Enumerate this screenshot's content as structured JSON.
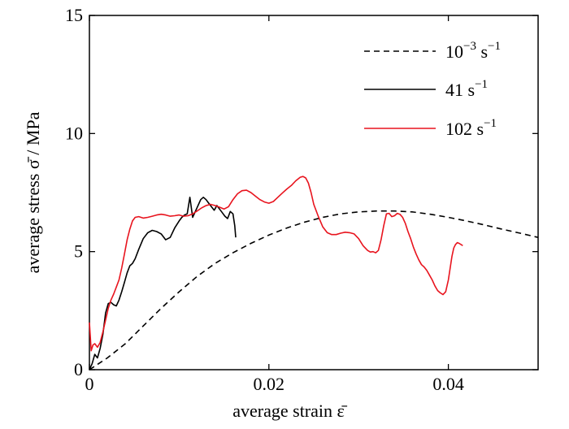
{
  "chart_data": {
    "type": "line",
    "title": "",
    "xlabel": "average strain ε̄",
    "ylabel": "average stress σ̄ / MPa",
    "xlim": [
      0,
      0.05
    ],
    "ylim": [
      0,
      15
    ],
    "x_ticks": [
      0,
      0.02,
      0.04
    ],
    "x_tick_labels": [
      "0",
      "0.02",
      "0.04"
    ],
    "y_ticks": [
      0,
      5,
      10,
      15
    ],
    "y_tick_labels": [
      "0",
      "5",
      "10",
      "15"
    ],
    "grid": false,
    "legend_position": "top-right",
    "series": [
      {
        "name": "10⁻³ s⁻¹",
        "legend_base": "10",
        "legend_exp": "−3",
        "legend_unit": "s",
        "legend_unit_exp": "−1",
        "style": "dashed",
        "color": "#000000",
        "x": [
          0.0,
          0.002,
          0.004,
          0.006,
          0.008,
          0.01,
          0.012,
          0.014,
          0.016,
          0.018,
          0.02,
          0.022,
          0.024,
          0.026,
          0.028,
          0.03,
          0.032,
          0.034,
          0.036,
          0.038,
          0.04,
          0.042,
          0.044,
          0.046,
          0.048,
          0.05
        ],
        "y": [
          0.0,
          0.5,
          1.1,
          1.85,
          2.6,
          3.3,
          3.95,
          4.5,
          4.95,
          5.35,
          5.7,
          6.0,
          6.25,
          6.45,
          6.6,
          6.68,
          6.72,
          6.72,
          6.68,
          6.58,
          6.45,
          6.3,
          6.13,
          5.95,
          5.78,
          5.6
        ]
      },
      {
        "name": "41 s⁻¹",
        "legend_base": "41",
        "legend_exp": "",
        "legend_unit": "s",
        "legend_unit_exp": "−1",
        "style": "solid",
        "color": "#000000",
        "x": [
          0.0,
          0.0003,
          0.0006,
          0.0009,
          0.0012,
          0.0015,
          0.0018,
          0.0021,
          0.0024,
          0.0027,
          0.003,
          0.0033,
          0.0036,
          0.0039,
          0.0042,
          0.0045,
          0.0048,
          0.0051,
          0.0055,
          0.006,
          0.0065,
          0.007,
          0.0075,
          0.008,
          0.0085,
          0.009,
          0.0095,
          0.01,
          0.0103,
          0.0106,
          0.0109,
          0.0112,
          0.0115,
          0.0118,
          0.0121,
          0.0124,
          0.0127,
          0.013,
          0.0133,
          0.0136,
          0.0139,
          0.0142,
          0.0145,
          0.0148,
          0.0151,
          0.0154,
          0.0157,
          0.016,
          0.0162,
          0.0163
        ],
        "y": [
          0.0,
          0.25,
          0.65,
          0.5,
          0.9,
          1.5,
          2.4,
          2.8,
          2.85,
          2.75,
          2.7,
          2.95,
          3.3,
          3.7,
          4.1,
          4.4,
          4.5,
          4.7,
          5.1,
          5.55,
          5.8,
          5.9,
          5.85,
          5.75,
          5.5,
          5.6,
          6.0,
          6.3,
          6.45,
          6.55,
          6.6,
          7.3,
          6.45,
          6.7,
          6.95,
          7.2,
          7.3,
          7.2,
          7.05,
          6.9,
          6.75,
          6.95,
          6.8,
          6.65,
          6.5,
          6.4,
          6.7,
          6.6,
          6.1,
          5.6
        ]
      },
      {
        "name": "102 s⁻¹",
        "legend_base": "102",
        "legend_exp": "",
        "legend_unit": "s",
        "legend_unit_exp": "−1",
        "style": "solid",
        "color": "#e8141e",
        "x": [
          0.0,
          0.0002,
          0.0004,
          0.0006,
          0.0009,
          0.0012,
          0.0015,
          0.0018,
          0.0021,
          0.0024,
          0.0027,
          0.003,
          0.0033,
          0.0036,
          0.0039,
          0.0042,
          0.0045,
          0.0048,
          0.0051,
          0.0055,
          0.006,
          0.0065,
          0.007,
          0.0075,
          0.008,
          0.0085,
          0.009,
          0.0095,
          0.01,
          0.0105,
          0.011,
          0.0115,
          0.012,
          0.0125,
          0.013,
          0.0135,
          0.014,
          0.0145,
          0.015,
          0.0155,
          0.016,
          0.0165,
          0.017,
          0.0175,
          0.018,
          0.0185,
          0.019,
          0.0195,
          0.02,
          0.0205,
          0.021,
          0.0215,
          0.022,
          0.0225,
          0.023,
          0.0235,
          0.0238,
          0.0241,
          0.0244,
          0.0247,
          0.025,
          0.0255,
          0.026,
          0.0265,
          0.027,
          0.0275,
          0.028,
          0.0285,
          0.029,
          0.0295,
          0.03,
          0.0305,
          0.031,
          0.0313,
          0.0316,
          0.0319,
          0.0322,
          0.0325,
          0.0328,
          0.0331,
          0.0334,
          0.0337,
          0.034,
          0.0343,
          0.0346,
          0.0349,
          0.0352,
          0.0355,
          0.0358,
          0.0361,
          0.0364,
          0.0367,
          0.037,
          0.0373,
          0.0376,
          0.0379,
          0.0382,
          0.0385,
          0.0388,
          0.0391,
          0.0394,
          0.0397,
          0.04,
          0.0402,
          0.0404,
          0.0406,
          0.0408,
          0.041,
          0.0412,
          0.0414,
          0.0416
        ],
        "y": [
          2.0,
          0.8,
          1.05,
          1.1,
          0.95,
          1.15,
          1.6,
          2.1,
          2.6,
          2.95,
          3.2,
          3.5,
          3.8,
          4.3,
          4.9,
          5.5,
          5.95,
          6.3,
          6.45,
          6.48,
          6.42,
          6.45,
          6.5,
          6.55,
          6.58,
          6.55,
          6.5,
          6.52,
          6.55,
          6.5,
          6.52,
          6.6,
          6.72,
          6.85,
          6.95,
          7.0,
          6.95,
          6.88,
          6.8,
          6.9,
          7.2,
          7.45,
          7.58,
          7.6,
          7.5,
          7.35,
          7.2,
          7.1,
          7.05,
          7.12,
          7.3,
          7.48,
          7.65,
          7.8,
          8.0,
          8.15,
          8.18,
          8.12,
          7.9,
          7.5,
          7.0,
          6.5,
          6.05,
          5.8,
          5.72,
          5.72,
          5.78,
          5.82,
          5.8,
          5.75,
          5.55,
          5.25,
          5.05,
          4.98,
          5.0,
          4.95,
          5.05,
          5.5,
          6.1,
          6.6,
          6.62,
          6.48,
          6.52,
          6.62,
          6.58,
          6.45,
          6.2,
          5.85,
          5.55,
          5.2,
          4.9,
          4.65,
          4.45,
          4.35,
          4.2,
          4.0,
          3.8,
          3.55,
          3.35,
          3.25,
          3.18,
          3.3,
          3.8,
          4.3,
          4.8,
          5.15,
          5.3,
          5.38,
          5.35,
          5.3,
          5.25
        ]
      }
    ]
  }
}
